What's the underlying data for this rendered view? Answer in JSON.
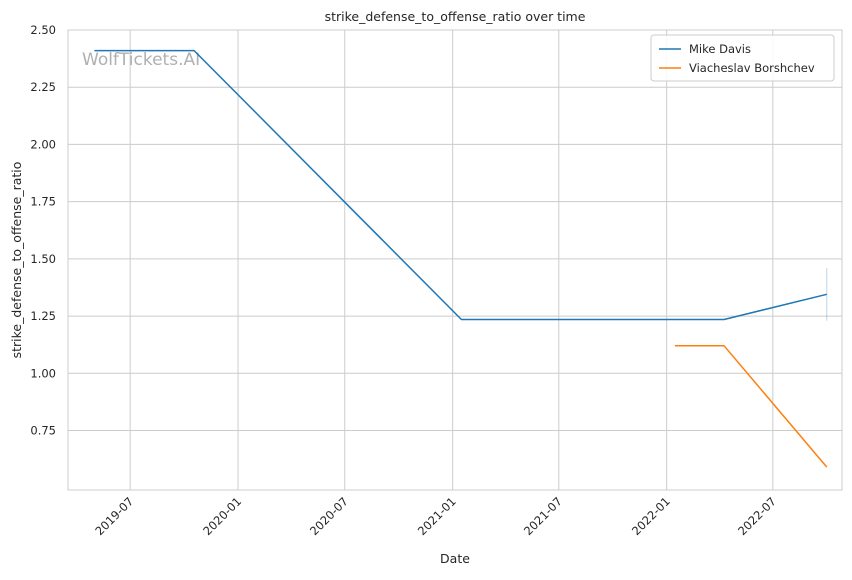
{
  "chart_data": {
    "type": "line",
    "title": "strike_defense_to_offense_ratio over time",
    "xlabel": "Date",
    "ylabel": "strike_defense_to_offense_ratio",
    "watermark": "WolfTickets.AI",
    "x_type": "date",
    "xlim": [
      "2019-03-17",
      "2022-10-27"
    ],
    "ylim": [
      0.49,
      2.5
    ],
    "x_ticks": [
      "2019-07",
      "2020-01",
      "2020-07",
      "2021-01",
      "2021-07",
      "2022-01",
      "2022-07"
    ],
    "y_ticks": [
      "0.75",
      "1.00",
      "1.25",
      "1.50",
      "1.75",
      "2.00",
      "2.25",
      "2.50"
    ],
    "grid": true,
    "legend_position": "top-right",
    "colors": {
      "Mike Davis": "#1f77b4",
      "Viacheslav Borshchev": "#ff7f0e"
    },
    "series": [
      {
        "name": "Mike Davis",
        "x": [
          "2019-05-01",
          "2019-10-18",
          "2021-01-16",
          "2022-04-09",
          "2022-10-01"
        ],
        "y": [
          2.41,
          2.41,
          1.235,
          1.235,
          1.345
        ],
        "error_range": [
          1.23,
          1.46
        ]
      },
      {
        "name": "Viacheslav Borshchev",
        "x": [
          "2022-01-15",
          "2022-04-09",
          "2022-10-01"
        ],
        "y": [
          1.12,
          1.12,
          0.59
        ]
      }
    ]
  }
}
